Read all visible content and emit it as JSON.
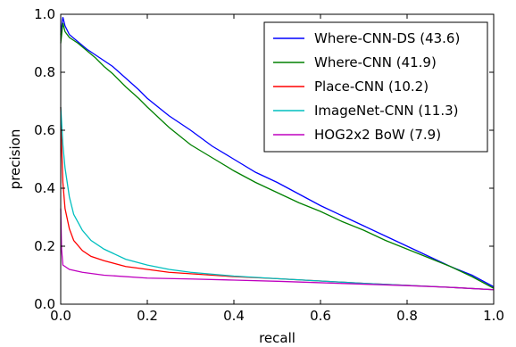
{
  "chart_data": {
    "type": "line",
    "title": "",
    "xlabel": "recall",
    "ylabel": "precision",
    "xlim": [
      0,
      1
    ],
    "ylim": [
      0,
      1
    ],
    "xticks": [
      "0.0",
      "0.2",
      "0.4",
      "0.6",
      "0.8",
      "1.0"
    ],
    "yticks": [
      "0.0",
      "0.2",
      "0.4",
      "0.6",
      "0.8",
      "1.0"
    ],
    "legend_position": "top-right",
    "grid": false,
    "series": [
      {
        "name": "Where-CNN-DS (43.6)",
        "color": "#0000ff",
        "x": [
          0.0,
          0.005,
          0.01,
          0.02,
          0.04,
          0.06,
          0.08,
          0.1,
          0.12,
          0.15,
          0.18,
          0.2,
          0.25,
          0.3,
          0.35,
          0.4,
          0.45,
          0.5,
          0.55,
          0.6,
          0.65,
          0.7,
          0.75,
          0.8,
          0.85,
          0.9,
          0.95,
          1.0
        ],
        "y": [
          0.93,
          0.99,
          0.96,
          0.93,
          0.905,
          0.88,
          0.86,
          0.84,
          0.82,
          0.78,
          0.74,
          0.71,
          0.65,
          0.6,
          0.545,
          0.5,
          0.455,
          0.42,
          0.38,
          0.34,
          0.305,
          0.27,
          0.235,
          0.2,
          0.165,
          0.13,
          0.1,
          0.06
        ]
      },
      {
        "name": "Where-CNN (41.9)",
        "color": "#008000",
        "x": [
          0.0,
          0.005,
          0.01,
          0.02,
          0.04,
          0.06,
          0.08,
          0.1,
          0.12,
          0.15,
          0.18,
          0.2,
          0.25,
          0.3,
          0.35,
          0.4,
          0.45,
          0.5,
          0.55,
          0.6,
          0.65,
          0.7,
          0.75,
          0.8,
          0.85,
          0.9,
          0.95,
          1.0
        ],
        "y": [
          0.9,
          0.97,
          0.94,
          0.92,
          0.9,
          0.875,
          0.85,
          0.82,
          0.795,
          0.75,
          0.71,
          0.68,
          0.61,
          0.55,
          0.505,
          0.46,
          0.42,
          0.385,
          0.35,
          0.32,
          0.285,
          0.255,
          0.22,
          0.19,
          0.16,
          0.13,
          0.095,
          0.055
        ]
      },
      {
        "name": "Place-CNN (10.2)",
        "color": "#ff0000",
        "x": [
          0.0,
          0.002,
          0.005,
          0.01,
          0.02,
          0.03,
          0.05,
          0.07,
          0.1,
          0.15,
          0.2,
          0.25,
          0.3,
          0.4,
          0.5,
          0.6,
          0.7,
          0.8,
          0.9,
          1.0
        ],
        "y": [
          0.68,
          0.55,
          0.42,
          0.33,
          0.26,
          0.22,
          0.185,
          0.165,
          0.15,
          0.13,
          0.12,
          0.11,
          0.105,
          0.095,
          0.088,
          0.08,
          0.072,
          0.065,
          0.058,
          0.05
        ]
      },
      {
        "name": "ImageNet-CNN (11.3)",
        "color": "#00bfbf",
        "x": [
          0.0,
          0.002,
          0.005,
          0.01,
          0.02,
          0.03,
          0.05,
          0.07,
          0.1,
          0.15,
          0.2,
          0.25,
          0.3,
          0.4,
          0.5,
          0.6,
          0.7,
          0.8,
          0.9,
          1.0
        ],
        "y": [
          0.68,
          0.63,
          0.55,
          0.47,
          0.37,
          0.31,
          0.255,
          0.22,
          0.19,
          0.155,
          0.135,
          0.12,
          0.11,
          0.097,
          0.088,
          0.08,
          0.072,
          0.065,
          0.058,
          0.05
        ]
      },
      {
        "name": "HOG2x2 BoW (7.9)",
        "color": "#bf00bf",
        "x": [
          0.0,
          0.002,
          0.005,
          0.01,
          0.02,
          0.05,
          0.1,
          0.2,
          0.3,
          0.4,
          0.5,
          0.6,
          0.7,
          0.8,
          0.9,
          1.0
        ],
        "y": [
          0.33,
          0.19,
          0.135,
          0.13,
          0.12,
          0.11,
          0.1,
          0.09,
          0.087,
          0.083,
          0.079,
          0.074,
          0.069,
          0.064,
          0.058,
          0.05
        ]
      }
    ]
  }
}
